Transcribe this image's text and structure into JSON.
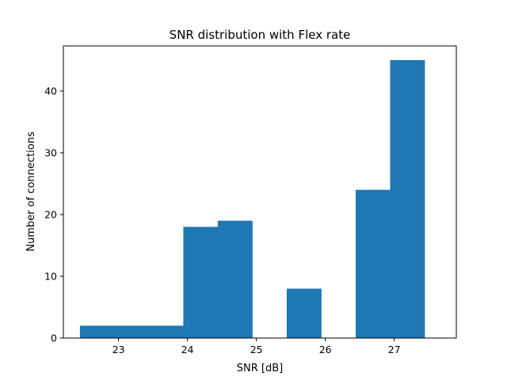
{
  "chart_data": {
    "type": "bar",
    "title": "SNR distribution with Flex rate",
    "xlabel": "SNR [dB]",
    "ylabel": "Number of connections",
    "xlim": [
      22.2,
      27.9
    ],
    "ylim": [
      0,
      47.3
    ],
    "xticks": [
      23,
      24,
      25,
      26,
      27
    ],
    "yticks": [
      0,
      10,
      20,
      30,
      40
    ],
    "grid": false,
    "bar_color": "#1f77b4",
    "bins": [
      {
        "x0": 22.44,
        "x1": 22.94,
        "value": 2
      },
      {
        "x0": 22.94,
        "x1": 23.44,
        "value": 2
      },
      {
        "x0": 23.44,
        "x1": 23.94,
        "value": 2
      },
      {
        "x0": 23.94,
        "x1": 24.44,
        "value": 18
      },
      {
        "x0": 24.44,
        "x1": 24.94,
        "value": 19
      },
      {
        "x0": 24.94,
        "x1": 25.44,
        "value": 0
      },
      {
        "x0": 25.44,
        "x1": 25.94,
        "value": 8
      },
      {
        "x0": 25.94,
        "x1": 26.44,
        "value": 0
      },
      {
        "x0": 26.44,
        "x1": 26.94,
        "value": 24
      },
      {
        "x0": 26.94,
        "x1": 27.44,
        "value": 45
      }
    ]
  }
}
